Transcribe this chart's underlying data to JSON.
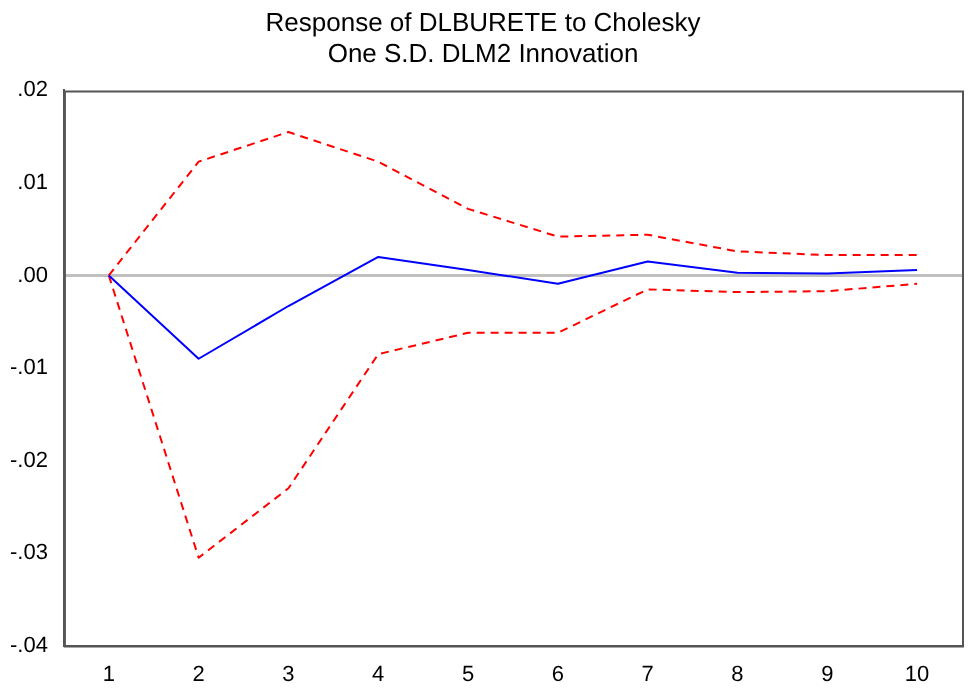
{
  "chart_data": {
    "type": "line",
    "title": "Response of DLBURETE to Cholesky\nOne S.D. DLM2 Innovation",
    "categories": [
      "1",
      "2",
      "3",
      "4",
      "5",
      "6",
      "7",
      "8",
      "9",
      "10"
    ],
    "series": [
      {
        "color": "#0000ff",
        "line_style": "solid",
        "values": [
          0,
          -0.009,
          -0.0033,
          0.002,
          0.0006,
          -0.0009,
          0.0015,
          0.0003,
          0.0002,
          0.0006
        ]
      },
      {
        "color": "#ff0000",
        "line_style": "dashed",
        "values": [
          0,
          0.0123,
          0.0155,
          0.0123,
          0.0072,
          0.0042,
          0.0044,
          0.0026,
          0.0022,
          0.0022
        ]
      },
      {
        "color": "#ff0000",
        "line_style": "dashed",
        "values": [
          0,
          -0.0305,
          -0.023,
          -0.0085,
          -0.0062,
          -0.0062,
          -0.0015,
          -0.0018,
          -0.0017,
          -0.0009
        ]
      }
    ],
    "ylim": [
      -0.04,
      0.02
    ],
    "yticks": [
      {
        "value": -0.04,
        "label": "-.04"
      },
      {
        "value": -0.03,
        "label": "-.03"
      },
      {
        "value": -0.02,
        "label": "-.02"
      },
      {
        "value": -0.01,
        "label": "-.01"
      },
      {
        "value": 0,
        "label": ".00"
      },
      {
        "value": 0.01,
        "label": ".01"
      },
      {
        "value": 0.02,
        "label": ".02"
      }
    ],
    "ref_lines": [
      {
        "axis": "y",
        "value": 0,
        "color": "#c0c0c0"
      }
    ],
    "grid": false,
    "legend": false,
    "marker": "none"
  }
}
